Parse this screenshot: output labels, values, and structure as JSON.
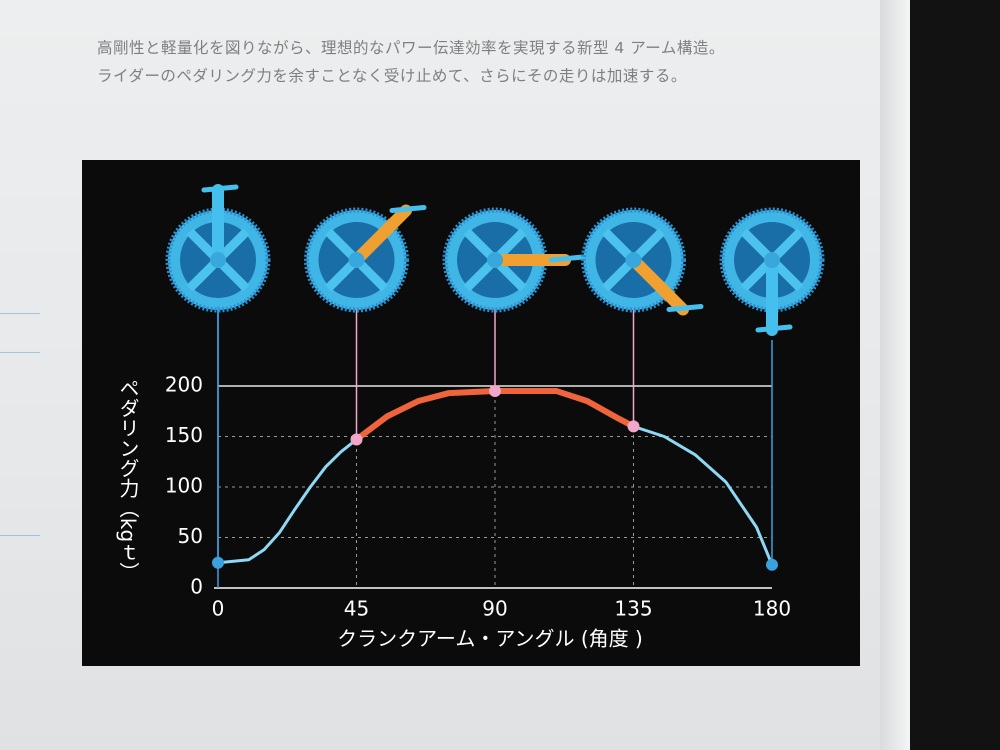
{
  "header": {
    "lines": [
      "高剛性と軽量化を図りながら、理想的なパワー伝達効率を実現する新型 4 アーム構造。",
      "ライダーのペダリング力を余すことなく受け止めて、さらにその走りは加速する。"
    ]
  },
  "chart_data": {
    "type": "line",
    "x_label": "クランクアーム・アングル (角度 )",
    "y_label": "ペダリング力（kgｔ）",
    "x": [
      0,
      10,
      15,
      20,
      25,
      30,
      35,
      40,
      45,
      55,
      65,
      75,
      90,
      110,
      120,
      130,
      135,
      145,
      155,
      165,
      175,
      180
    ],
    "values": [
      25,
      28,
      38,
      55,
      78,
      100,
      120,
      135,
      147,
      170,
      185,
      193,
      195,
      195,
      185,
      168,
      160,
      150,
      132,
      105,
      60,
      23
    ],
    "color": "#8fd8f4",
    "highlight": {
      "from": 45,
      "to": 135,
      "color": "#f0643c"
    },
    "markers": [
      0,
      45,
      90,
      135,
      180
    ],
    "marker_colors": [
      "#3aa0e0",
      "#f2a6c8",
      "#f2a6c8",
      "#f2a6c8",
      "#3aa0e0"
    ],
    "xlim": [
      0,
      180
    ],
    "xticks": [
      0,
      45,
      90,
      135,
      180
    ],
    "ylim": [
      0,
      200
    ],
    "yticks": [
      0,
      50,
      100,
      150,
      200
    ],
    "grid": true
  }
}
